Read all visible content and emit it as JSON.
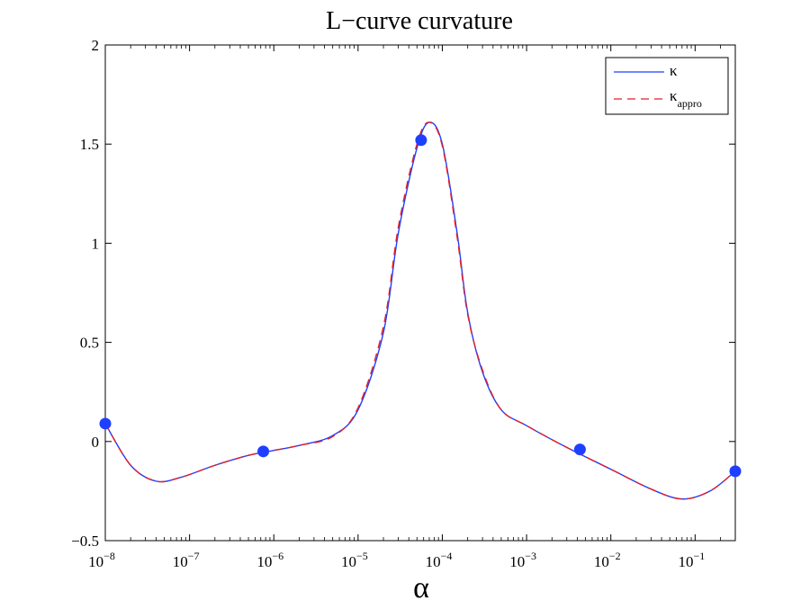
{
  "chart_data": {
    "type": "line",
    "title": "L−curve curvature",
    "xlabel": "α",
    "ylabel": "",
    "xscale": "log",
    "xlim": [
      1e-08,
      0.3
    ],
    "ylim": [
      -0.5,
      2
    ],
    "grid": false,
    "legend_position": "top-right",
    "x_ticks": [
      1e-08,
      1e-07,
      1e-06,
      1e-05,
      0.0001,
      0.001,
      0.01,
      0.1
    ],
    "x_tick_labels": [
      {
        "base": "10",
        "exp": "−8"
      },
      {
        "base": "10",
        "exp": "−7"
      },
      {
        "base": "10",
        "exp": "−6"
      },
      {
        "base": "10",
        "exp": "−5"
      },
      {
        "base": "10",
        "exp": "−4"
      },
      {
        "base": "10",
        "exp": "−3"
      },
      {
        "base": "10",
        "exp": "−2"
      },
      {
        "base": "10",
        "exp": "−1"
      }
    ],
    "y_ticks": [
      -0.5,
      0,
      0.5,
      1,
      1.5,
      2
    ],
    "y_tick_labels": [
      "−0.5",
      "0",
      "0.5",
      "1",
      "1.5",
      "2"
    ],
    "series": [
      {
        "name": "κ",
        "name_sub": "",
        "color": "#1f3fff",
        "style": "solid",
        "x": [
          1e-08,
          2e-08,
          4e-08,
          8e-08,
          2e-07,
          5e-07,
          1e-06,
          2e-06,
          5e-06,
          1e-05,
          2e-05,
          3e-05,
          5e-05,
          7e-05,
          0.0001,
          0.00015,
          0.0002,
          0.0003,
          0.0005,
          0.001,
          0.003,
          0.01,
          0.03,
          0.07,
          0.15,
          0.3
        ],
        "y": [
          0.09,
          -0.12,
          -0.2,
          -0.18,
          -0.12,
          -0.07,
          -0.045,
          -0.02,
          0.03,
          0.16,
          0.55,
          1.05,
          1.48,
          1.61,
          1.5,
          1.05,
          0.65,
          0.35,
          0.16,
          0.08,
          -0.03,
          -0.14,
          -0.24,
          -0.29,
          -0.25,
          -0.15
        ]
      },
      {
        "name": "κ",
        "name_sub": "appro",
        "color": "#e0202a",
        "style": "dashed",
        "x": [
          1e-08,
          2e-08,
          4e-08,
          8e-08,
          2e-07,
          5e-07,
          1e-06,
          2e-06,
          5e-06,
          1e-05,
          2e-05,
          3e-05,
          5e-05,
          7e-05,
          0.0001,
          0.00015,
          0.0002,
          0.0003,
          0.0005,
          0.001,
          0.003,
          0.01,
          0.03,
          0.07,
          0.15,
          0.3
        ],
        "y": [
          0.09,
          -0.12,
          -0.2,
          -0.18,
          -0.12,
          -0.07,
          -0.045,
          -0.02,
          0.025,
          0.17,
          0.58,
          1.08,
          1.5,
          1.61,
          1.49,
          1.03,
          0.64,
          0.36,
          0.16,
          0.08,
          -0.03,
          -0.14,
          -0.24,
          -0.29,
          -0.25,
          -0.15
        ]
      }
    ],
    "markers": {
      "color": "#1f3fff",
      "points": [
        {
          "x": 1e-08,
          "y": 0.09
        },
        {
          "x": 7.5e-07,
          "y": -0.05
        },
        {
          "x": 5.6e-05,
          "y": 1.52
        },
        {
          "x": 0.0043,
          "y": -0.04
        },
        {
          "x": 0.3,
          "y": -0.15
        }
      ]
    }
  }
}
